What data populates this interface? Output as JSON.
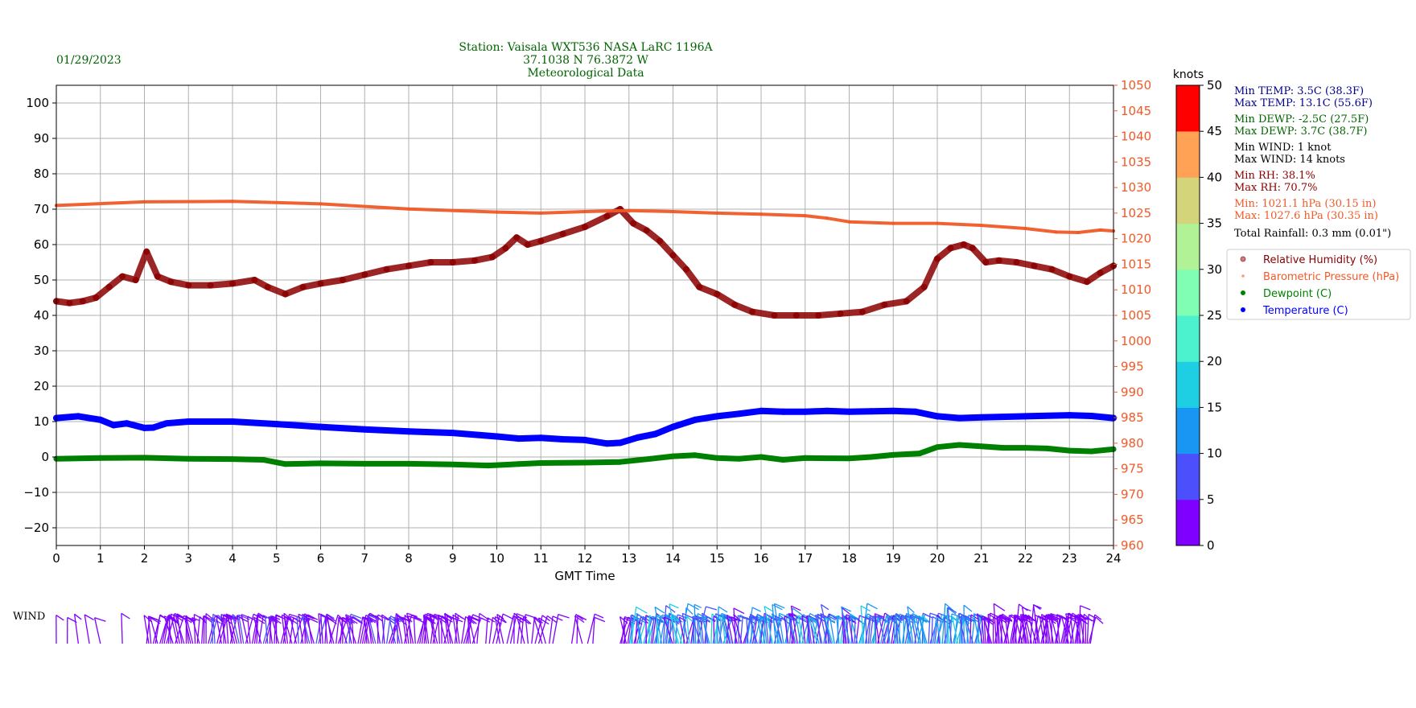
{
  "header": {
    "date": "01/29/2023",
    "station_line1": "Station:  Vaisala WXT536  NASA LaRC 1196A",
    "station_line2": "37.1038 N 76.3872 W",
    "station_line3": "Meteorological Data"
  },
  "colors": {
    "date": "#006400",
    "station": "#006400",
    "rh": "#8b0000",
    "pressure": "#f05a28",
    "dewpoint": "#008000",
    "temperature": "#0000ff",
    "grid": "#b0b0b0",
    "temp_text": "#00008b",
    "wind_text": "#000000",
    "rain_text": "#000000"
  },
  "stats": {
    "min_temp": "Min TEMP: 3.5C (38.3F)",
    "max_temp": "Max TEMP: 13.1C (55.6F)",
    "min_dewp": "Min DEWP: -2.5C (27.5F)",
    "max_dewp": "Max DEWP: 3.7C (38.7F)",
    "min_wind": "Min WIND: 1 knot",
    "max_wind": "Max WIND: 14 knots",
    "min_rh": "Min RH: 38.1%",
    "max_rh": "Max RH: 70.7%",
    "min_pres": "Min: 1021.1 hPa (30.15 in)",
    "max_pres": "Max: 1027.6 hPa (30.35 in)",
    "rain": "Total Rainfall: 0.3 mm (0.01\")"
  },
  "legend": {
    "rh": "Relative Humidity (%)",
    "pressure": "Barometric Pressure (hPa)",
    "dewpoint": "Dewpoint (C)",
    "temperature": "Temperature (C)"
  },
  "colorbar": {
    "title": "knots",
    "ticks": [
      "0",
      "5",
      "10",
      "15",
      "20",
      "25",
      "30",
      "35",
      "40",
      "45",
      "50"
    ],
    "colors": [
      "#8000ff",
      "#4c50fc",
      "#1996f3",
      "#1ecfe3",
      "#4cf2ce",
      "#80ffb4",
      "#b2f296",
      "#d4d47a",
      "#ffa256",
      "#ff5a32",
      "#ff0000"
    ]
  },
  "wind": {
    "label": "WIND"
  },
  "chart_data": {
    "type": "line",
    "xlabel": "GMT Time",
    "xlim": [
      0,
      24
    ],
    "x_ticks": [
      0,
      1,
      2,
      3,
      4,
      5,
      6,
      7,
      8,
      9,
      10,
      11,
      12,
      13,
      14,
      15,
      16,
      17,
      18,
      19,
      20,
      21,
      22,
      23,
      24
    ],
    "ylim_left": [
      -25,
      105
    ],
    "y_ticks_left": [
      -20,
      -10,
      0,
      10,
      20,
      30,
      40,
      50,
      60,
      70,
      80,
      90,
      100
    ],
    "ylim_right": [
      960,
      1050
    ],
    "y_ticks_right": [
      960,
      965,
      970,
      975,
      980,
      985,
      990,
      995,
      1000,
      1005,
      1010,
      1015,
      1020,
      1025,
      1030,
      1035,
      1040,
      1045,
      1050
    ],
    "grid": true,
    "series": [
      {
        "name": "Relative Humidity (%)",
        "axis": "left",
        "x": [
          0,
          0.3,
          0.6,
          0.9,
          1.2,
          1.5,
          1.8,
          2.05,
          2.3,
          2.6,
          3.0,
          3.5,
          4.0,
          4.5,
          4.8,
          5.2,
          5.6,
          6.0,
          6.5,
          7.0,
          7.5,
          8.0,
          8.5,
          9.0,
          9.5,
          9.9,
          10.2,
          10.45,
          10.7,
          11.0,
          11.5,
          12.0,
          12.5,
          12.8,
          13.1,
          13.4,
          13.7,
          14.0,
          14.3,
          14.6,
          15.0,
          15.4,
          15.8,
          16.3,
          16.8,
          17.3,
          17.8,
          18.3,
          18.8,
          19.3,
          19.7,
          20.0,
          20.3,
          20.6,
          20.8,
          21.1,
          21.4,
          21.8,
          22.2,
          22.6,
          23.0,
          23.4,
          23.7,
          24.0
        ],
        "y": [
          44,
          43.5,
          44,
          45,
          48,
          51,
          50,
          58,
          51,
          49.5,
          48.5,
          48.5,
          49,
          50,
          48,
          46,
          48,
          49,
          50,
          51.5,
          53,
          54,
          55,
          55,
          55.5,
          56.5,
          59,
          62,
          60,
          61,
          63,
          65,
          68,
          70,
          66,
          64,
          61,
          57,
          53,
          48,
          46,
          43,
          41,
          40,
          40,
          40,
          40.5,
          41,
          43,
          44,
          48,
          56,
          59,
          60,
          59,
          55,
          55.5,
          55,
          54,
          53,
          51,
          49.5,
          52,
          54
        ]
      },
      {
        "name": "Barometric Pressure (hPa)",
        "axis": "right",
        "x": [
          0,
          2,
          4,
          6,
          8,
          10,
          11,
          12,
          13,
          14,
          15,
          16,
          17,
          17.5,
          18,
          19,
          20,
          21,
          22,
          22.7,
          23.2,
          23.7,
          24
        ],
        "y": [
          1026.5,
          1027.2,
          1027.3,
          1026.8,
          1025.8,
          1025.2,
          1025,
          1025.3,
          1025.5,
          1025.3,
          1025,
          1024.8,
          1024.5,
          1024,
          1023.3,
          1023,
          1023,
          1022.6,
          1022,
          1021.3,
          1021.2,
          1021.7,
          1021.5
        ]
      },
      {
        "name": "Dewpoint (C)",
        "axis": "left",
        "x": [
          0,
          1,
          2,
          3,
          4,
          4.7,
          5.2,
          6,
          7,
          8,
          9,
          9.8,
          10.5,
          11,
          12,
          12.8,
          13.5,
          14,
          14.5,
          15,
          15.5,
          16,
          16.5,
          17,
          18,
          18.5,
          19,
          19.6,
          20,
          20.5,
          21,
          21.5,
          22,
          22.5,
          23,
          23.5,
          24
        ],
        "y": [
          -0.5,
          -0.3,
          -0.2,
          -0.5,
          -0.6,
          -0.8,
          -2,
          -1.8,
          -1.9,
          -1.9,
          -2.1,
          -2.4,
          -2,
          -1.7,
          -1.6,
          -1.4,
          -0.5,
          0.2,
          0.5,
          -0.3,
          -0.5,
          0,
          -0.8,
          -0.3,
          -0.4,
          0,
          0.6,
          1,
          2.8,
          3.4,
          3,
          2.6,
          2.6,
          2.4,
          1.8,
          1.6,
          2.2
        ]
      },
      {
        "name": "Temperature (C)",
        "axis": "left",
        "x": [
          0,
          0.5,
          1,
          1.3,
          1.6,
          2,
          2.2,
          2.5,
          3,
          4,
          5,
          6,
          7,
          8,
          9,
          10,
          10.5,
          11,
          11.5,
          12,
          12.5,
          12.8,
          13.2,
          13.6,
          14,
          14.5,
          15,
          15.5,
          16,
          16.5,
          17,
          17.5,
          18,
          18.5,
          19,
          19.5,
          20,
          20.5,
          21,
          22,
          23,
          23.5,
          24
        ],
        "y": [
          11,
          11.5,
          10.5,
          9,
          9.5,
          8.2,
          8.3,
          9.5,
          10,
          10,
          9.3,
          8.5,
          7.8,
          7.2,
          6.8,
          5.8,
          5.2,
          5.4,
          5,
          4.8,
          3.8,
          4,
          5.5,
          6.5,
          8.5,
          10.5,
          11.5,
          12.2,
          13,
          12.8,
          12.8,
          13,
          12.8,
          12.9,
          13,
          12.8,
          11.5,
          11,
          11.2,
          11.5,
          11.8,
          11.6,
          11
        ]
      }
    ]
  }
}
